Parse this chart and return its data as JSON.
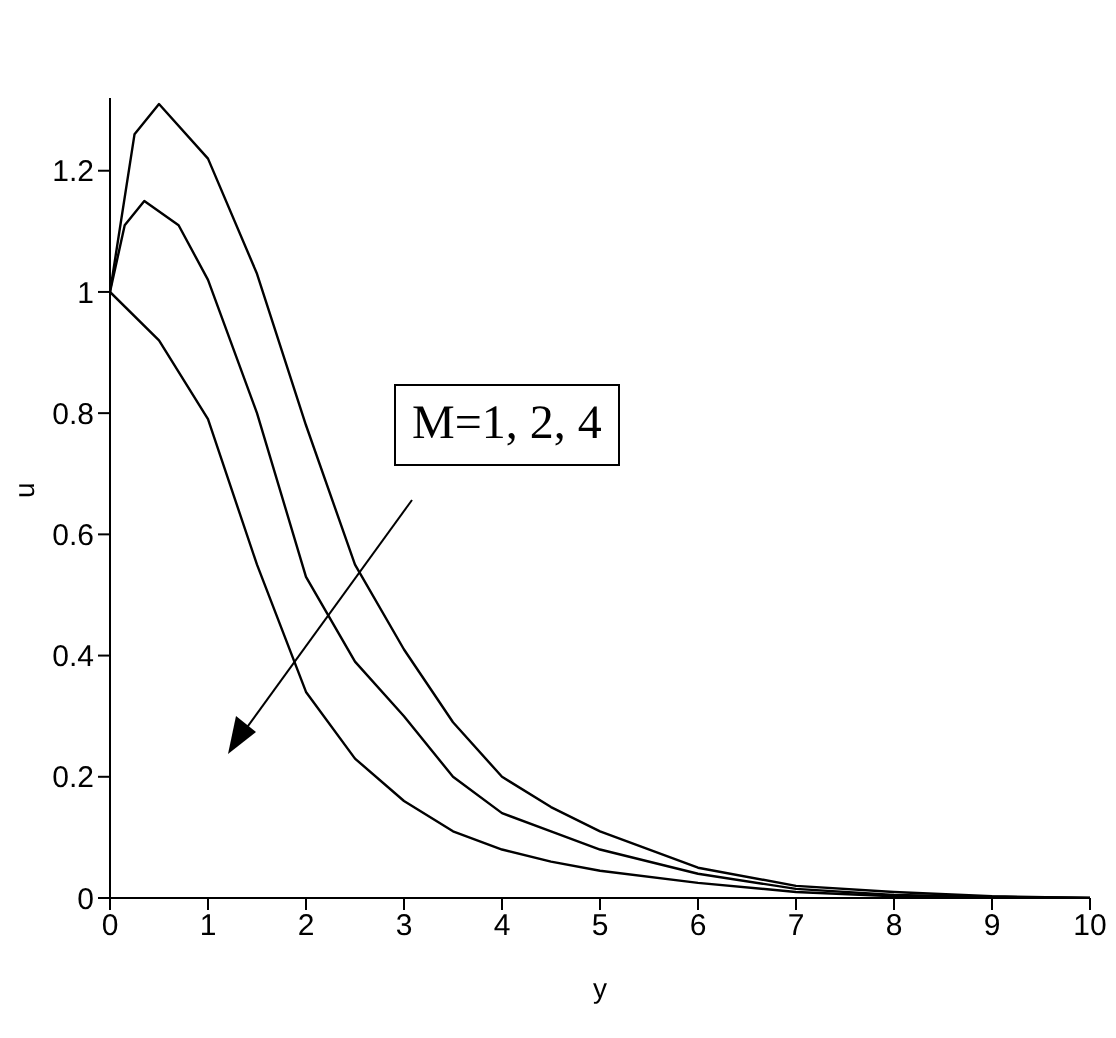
{
  "chart_data": {
    "type": "line",
    "xlabel": "y",
    "ylabel": "u",
    "annotations": [
      "M=1, 2, 4"
    ],
    "xlim": [
      0,
      10
    ],
    "xticks": [
      0,
      1,
      2,
      3,
      4,
      5,
      6,
      7,
      8,
      9,
      10
    ],
    "ylim": [
      0,
      1.32
    ],
    "yticks": [
      0,
      0.2,
      0.4,
      0.6,
      0.8,
      1,
      1.2
    ],
    "grid": false,
    "legend": false,
    "marker": "none",
    "line_style": "solid",
    "series": [
      {
        "color": "#000000",
        "x": [
          0,
          0.25,
          0.5,
          1,
          1.5,
          2,
          2.5,
          3,
          3.5,
          4,
          4.5,
          5,
          6,
          7,
          8,
          9,
          10
        ],
        "values": [
          1.0,
          1.26,
          1.31,
          1.22,
          1.03,
          0.78,
          0.55,
          0.41,
          0.29,
          0.2,
          0.15,
          0.11,
          0.05,
          0.02,
          0.01,
          0.003,
          0
        ]
      },
      {
        "color": "#000000",
        "x": [
          0,
          0.15,
          0.35,
          0.7,
          1,
          1.5,
          2,
          2.5,
          3,
          3.5,
          4,
          4.5,
          5,
          6,
          7,
          8,
          9,
          10
        ],
        "values": [
          1.0,
          1.11,
          1.15,
          1.11,
          1.02,
          0.8,
          0.53,
          0.39,
          0.3,
          0.2,
          0.14,
          0.11,
          0.08,
          0.04,
          0.015,
          0.005,
          0.002,
          0
        ]
      },
      {
        "color": "#000000",
        "x": [
          0,
          0.5,
          1,
          1.5,
          2,
          2.5,
          3,
          3.5,
          4,
          4.5,
          5,
          6,
          7,
          8,
          9,
          10
        ],
        "values": [
          1.0,
          0.92,
          0.79,
          0.55,
          0.34,
          0.23,
          0.16,
          0.11,
          0.08,
          0.06,
          0.045,
          0.025,
          0.01,
          0.003,
          0.001,
          0
        ]
      }
    ]
  }
}
